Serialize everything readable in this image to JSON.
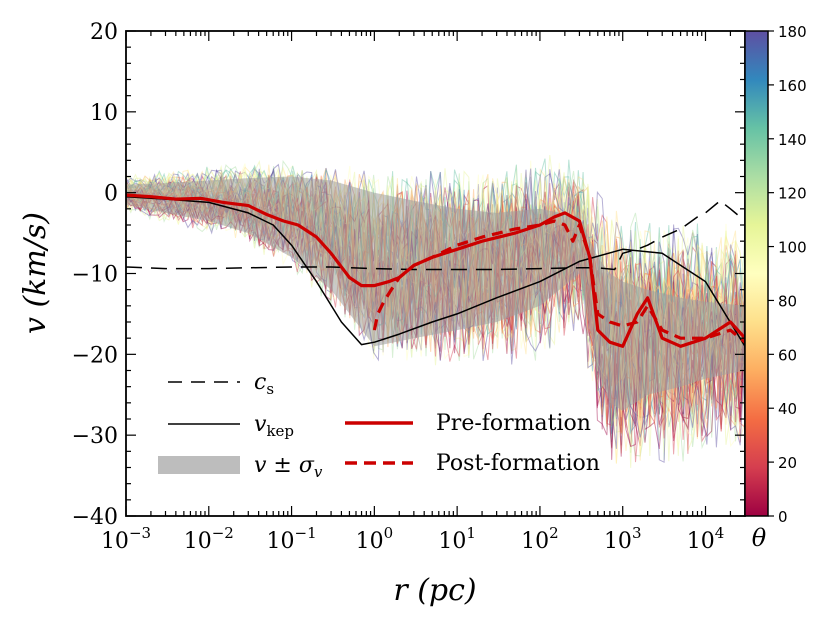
{
  "chart_data": {
    "type": "line",
    "xscale": "log",
    "xlim": [
      0.001,
      30000
    ],
    "ylim": [
      -40,
      20
    ],
    "xlabel": "r (pc)",
    "ylabel": "v (km/s)",
    "x_tick_labels": [
      {
        "value": 0.001,
        "base": "10",
        "exp": "−3"
      },
      {
        "value": 0.01,
        "base": "10",
        "exp": "−2"
      },
      {
        "value": 0.1,
        "base": "10",
        "exp": "−1"
      },
      {
        "value": 1,
        "base": "10",
        "exp": "0"
      },
      {
        "value": 10,
        "base": "10",
        "exp": "1"
      },
      {
        "value": 100,
        "base": "10",
        "exp": "2"
      },
      {
        "value": 1000,
        "base": "10",
        "exp": "3"
      },
      {
        "value": 10000,
        "base": "10",
        "exp": "4"
      }
    ],
    "y_tick_labels": [
      {
        "value": 20,
        "label": "20"
      },
      {
        "value": 10,
        "label": "10"
      },
      {
        "value": 0,
        "label": "0"
      },
      {
        "value": -10,
        "label": "−10"
      },
      {
        "value": -20,
        "label": "−20"
      },
      {
        "value": -30,
        "label": "−30"
      },
      {
        "value": -40,
        "label": "−40"
      }
    ],
    "colorbar": {
      "label": "θ",
      "range": [
        0,
        180
      ],
      "ticks": [
        {
          "value": 180,
          "label": "180"
        },
        {
          "value": 160,
          "label": "160"
        },
        {
          "value": 140,
          "label": "140"
        },
        {
          "value": 120,
          "label": "120"
        },
        {
          "value": 100,
          "label": "100"
        },
        {
          "value": 80,
          "label": "80"
        },
        {
          "value": 60,
          "label": "60"
        },
        {
          "value": 40,
          "label": "40"
        },
        {
          "value": 20,
          "label": "20"
        },
        {
          "value": 0,
          "label": "0"
        }
      ],
      "colormap": [
        "#9e0142",
        "#d53e4f",
        "#f46d43",
        "#fdae61",
        "#fee08b",
        "#ffffbf",
        "#e6f598",
        "#abdda4",
        "#66c2a5",
        "#3288bd",
        "#5e4fa2"
      ]
    },
    "legend": {
      "position": "lower-left",
      "entries": [
        {
          "key": "cs",
          "label": "c",
          "sub": "s",
          "style": "black dashed"
        },
        {
          "key": "vkep",
          "label": "v",
          "sub": "kep",
          "style": "black solid"
        },
        {
          "key": "sigma",
          "label": "v ± σ",
          "sub": "v",
          "style": "gray band"
        },
        {
          "key": "pre",
          "label": "Pre-formation",
          "style": "red solid"
        },
        {
          "key": "post",
          "label": "Post-formation",
          "style": "red dashed"
        }
      ]
    },
    "series": [
      {
        "name": "Pre-formation",
        "color": "#cc0000",
        "dash": "none",
        "x": [
          0.001,
          0.002,
          0.004,
          0.008,
          0.015,
          0.03,
          0.05,
          0.08,
          0.12,
          0.2,
          0.3,
          0.5,
          0.7,
          1.0,
          1.5,
          2,
          3,
          5,
          10,
          20,
          50,
          100,
          150,
          200,
          300,
          400,
          500,
          700,
          1000,
          1500,
          2000,
          3000,
          5000,
          10000,
          20000,
          30000
        ],
        "values": [
          -0.3,
          -0.5,
          -0.8,
          -0.7,
          -1.2,
          -1.6,
          -2.7,
          -3.5,
          -4.0,
          -5.5,
          -7.5,
          -10.5,
          -11.5,
          -11.5,
          -11.0,
          -10.5,
          -9.0,
          -8.0,
          -7.0,
          -6.0,
          -5.0,
          -4.0,
          -3.0,
          -2.5,
          -3.5,
          -8.0,
          -17.0,
          -18.5,
          -19.0,
          -15.0,
          -13.0,
          -18.0,
          -19.0,
          -18.0,
          -16.0,
          -18.0
        ]
      },
      {
        "name": "Post-formation",
        "color": "#cc0000",
        "dash": "dashed",
        "x": [
          1.0,
          1.1,
          1.3,
          1.6,
          2,
          3,
          5,
          10,
          20,
          50,
          100,
          150,
          200,
          250,
          300,
          400,
          500,
          700,
          1000,
          1500,
          2000,
          3000,
          5000,
          10000,
          20000,
          30000
        ],
        "values": [
          -17.0,
          -15.0,
          -13.5,
          -12.0,
          -10.5,
          -9.0,
          -8.0,
          -6.5,
          -5.5,
          -4.5,
          -4.0,
          -3.5,
          -4.0,
          -6.0,
          -4.0,
          -8.0,
          -15.0,
          -16.0,
          -16.5,
          -16.0,
          -14.0,
          -17.0,
          -18.0,
          -18.0,
          -17.0,
          -18.5
        ]
      },
      {
        "name": "v_kep",
        "color": "#000000",
        "dash": "none",
        "x": [
          0.001,
          0.003,
          0.01,
          0.03,
          0.06,
          0.1,
          0.2,
          0.4,
          0.7,
          1.0,
          2,
          5,
          10,
          30,
          100,
          300,
          1000,
          3000,
          10000,
          30000
        ],
        "values": [
          -0.5,
          -0.8,
          -1.2,
          -2.5,
          -4.0,
          -6.5,
          -11.0,
          -16.0,
          -18.8,
          -18.5,
          -17.5,
          -16.0,
          -15.0,
          -13.0,
          -11.0,
          -8.5,
          -7.0,
          -7.5,
          -11.0,
          -19.0
        ]
      },
      {
        "name": "c_s",
        "color": "#000000",
        "dash": "dashed",
        "x": [
          0.001,
          0.003,
          0.01,
          0.03,
          0.1,
          0.3,
          1,
          3,
          10,
          30,
          100,
          300,
          500,
          800,
          1000,
          1500,
          2000,
          3000,
          5000,
          8000,
          10000,
          15000,
          20000,
          30000
        ],
        "values": [
          -9.2,
          -9.4,
          -9.4,
          -9.3,
          -9.2,
          -9.2,
          -9.4,
          -9.5,
          -9.5,
          -9.5,
          -9.4,
          -9.3,
          -9.3,
          -9.5,
          -7.5,
          -7.0,
          -6.5,
          -5.5,
          -4.5,
          -3.0,
          -2.5,
          -1.0,
          -2.0,
          -3.5
        ]
      }
    ],
    "sigma_band": {
      "x": [
        0.001,
        0.003,
        0.01,
        0.03,
        0.1,
        0.3,
        1,
        3,
        10,
        30,
        100,
        300,
        500,
        700,
        1000,
        2000,
        5000,
        10000,
        30000
      ],
      "upper": [
        1.0,
        1.2,
        1.5,
        1.8,
        2.0,
        1.5,
        0.0,
        -1.0,
        -2.0,
        -2.5,
        -2.0,
        -3.0,
        -8.0,
        -10.0,
        -11.0,
        -12.0,
        -13.0,
        -13.5,
        -14.0
      ],
      "lower": [
        -1.5,
        -2.5,
        -3.5,
        -5.0,
        -8.0,
        -12.0,
        -19.0,
        -18.0,
        -17.0,
        -16.0,
        -14.0,
        -10.0,
        -22.0,
        -26.0,
        -27.0,
        -25.0,
        -24.0,
        -23.0,
        -22.0
      ]
    }
  }
}
